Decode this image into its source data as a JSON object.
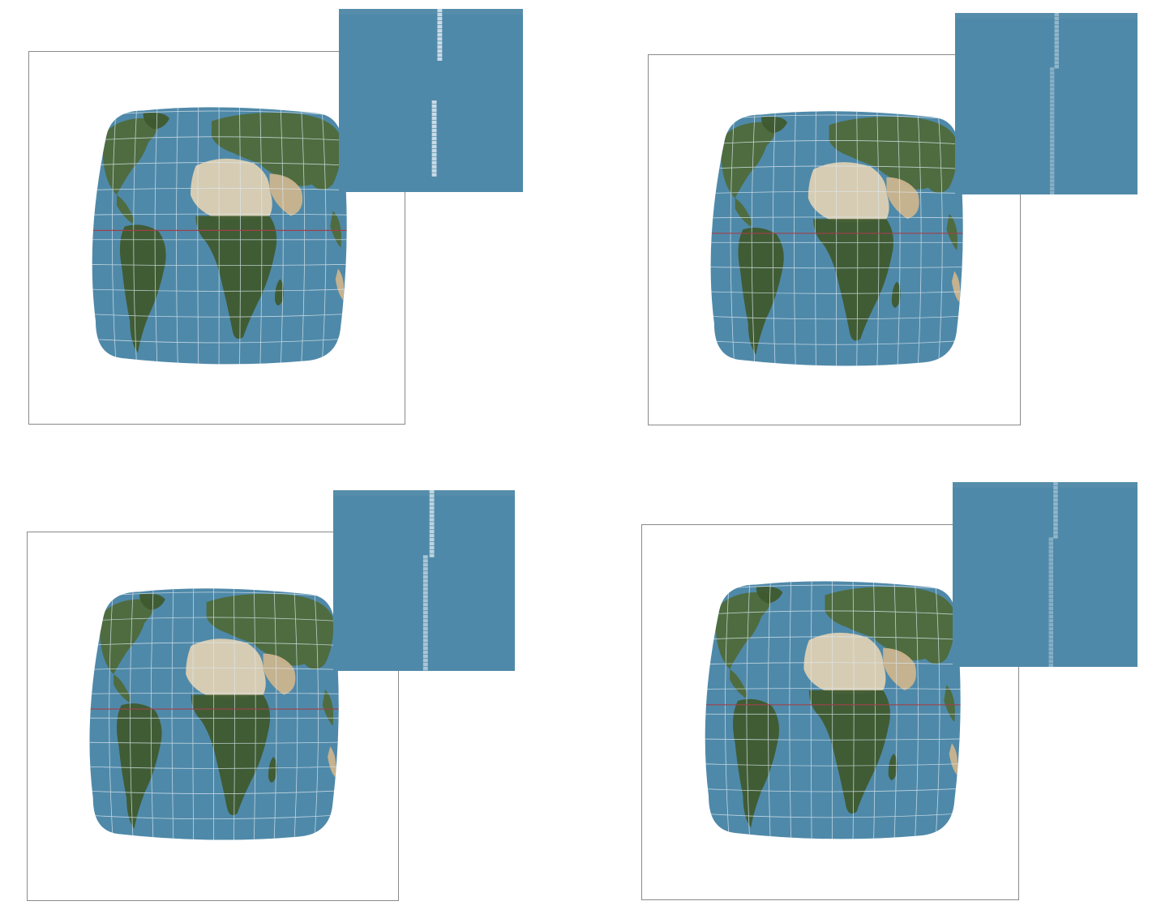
{
  "colors": {
    "ocean": "#4f89a9",
    "land_green": "#4e6a3a",
    "land_dark_green": "#3f5a2e",
    "desert": "#cbb48d",
    "desert_light": "#ddd0b3",
    "graticule": "#dce8ef",
    "equator": "#a0404a",
    "frame_border": "#8a8a8a",
    "inset_bg": "#4f89a9",
    "inset_strip": "#c9dbe6"
  },
  "panels": [
    {
      "id": "p1",
      "inset_strip_style": "dashed-two-segments"
    },
    {
      "id": "p2",
      "inset_strip_style": "faded"
    },
    {
      "id": "p3",
      "inset_strip_style": "stepped"
    },
    {
      "id": "p4",
      "inset_strip_style": "faded"
    }
  ]
}
